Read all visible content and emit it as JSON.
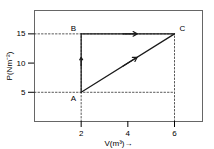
{
  "chart_data": {
    "type": "line",
    "xlabel": "V(m³)→",
    "ylabel": "P(Nm⁻²)",
    "xlim": [
      0,
      7.2
    ],
    "ylim": [
      0,
      19
    ],
    "xticks": [
      2,
      4,
      6
    ],
    "yticks": [
      5,
      10,
      15
    ],
    "grid": false,
    "series": [
      {
        "x": [
          0,
          6
        ],
        "values": [
          5,
          5
        ],
        "color": "#444444",
        "line_style": "dotted"
      },
      {
        "x": [
          0,
          6
        ],
        "values": [
          15,
          15
        ],
        "color": "#444444",
        "line_style": "dotted"
      },
      {
        "x": [
          2,
          2
        ],
        "values": [
          0,
          15
        ],
        "color": "#444444",
        "line_style": "dotted"
      },
      {
        "x": [
          6,
          6
        ],
        "values": [
          0,
          15
        ],
        "color": "#444444",
        "line_style": "dotted"
      },
      {
        "x": [
          2,
          2
        ],
        "values": [
          5,
          15
        ],
        "color": "#1a1a1a",
        "line_style": "solid",
        "marker": "arrow"
      },
      {
        "x": [
          2,
          6
        ],
        "values": [
          15,
          15
        ],
        "color": "#1a1a1a",
        "line_style": "solid",
        "marker": "arrow"
      },
      {
        "x": [
          2,
          6
        ],
        "values": [
          5,
          15
        ],
        "color": "#1a1a1a",
        "line_style": "solid",
        "marker": "arrow"
      }
    ],
    "annotations": [
      {
        "text": "A",
        "x": 2,
        "y": 5
      },
      {
        "text": "B",
        "x": 2,
        "y": 15
      },
      {
        "text": "C",
        "x": 6,
        "y": 15
      }
    ]
  }
}
